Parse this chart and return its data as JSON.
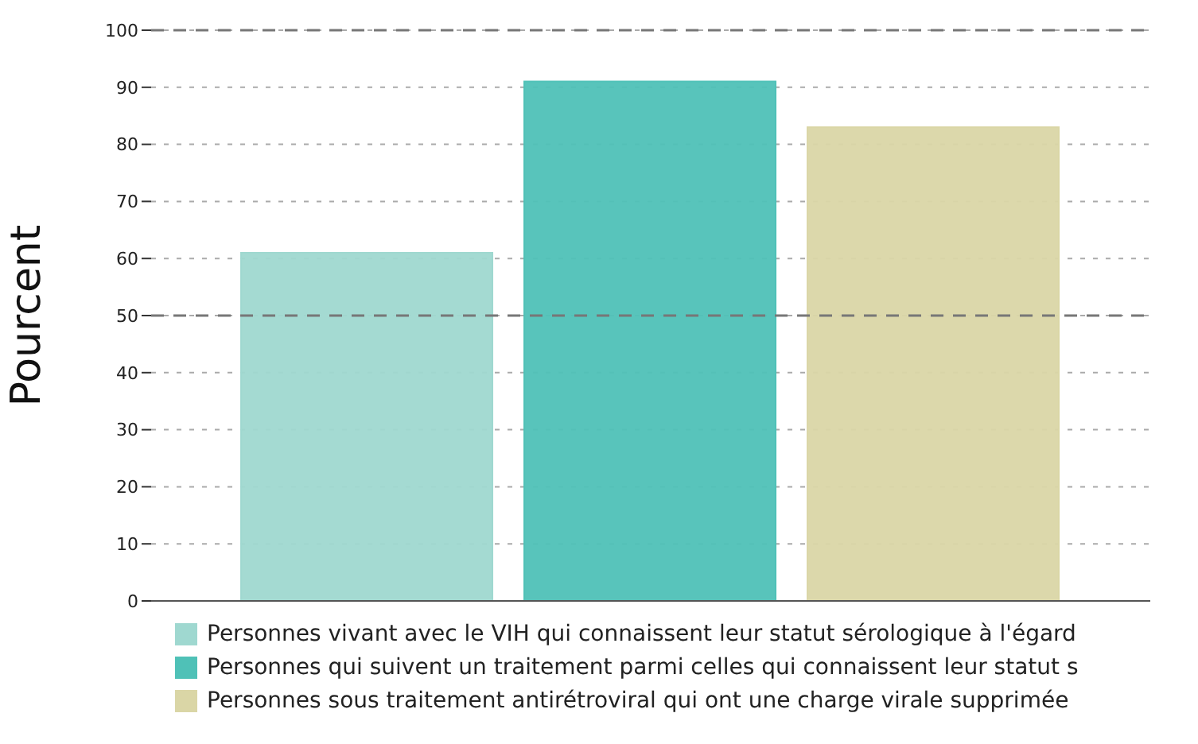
{
  "chart_data": {
    "type": "bar",
    "ylabel": "Pourcent",
    "categories": [
      null
    ],
    "series": [
      {
        "name": "Personnes vivant avec le VIH qui connaissent leur statut sérologique à l'égard",
        "color": "#9fd8d0",
        "values": [
          61
        ]
      },
      {
        "name": "Personnes qui suivent un traitement parmi celles qui connaissent leur statut s",
        "color": "#4fc1b7",
        "values": [
          91
        ]
      },
      {
        "name": "Personnes sous traitement antirétroviral qui ont une charge virale supprimée",
        "color": "#dad6a6",
        "values": [
          83
        ]
      }
    ],
    "ylim": [
      0,
      100
    ],
    "yticks": [
      0,
      10,
      20,
      30,
      40,
      50,
      60,
      70,
      80,
      90,
      100
    ],
    "grid": "y",
    "legend": "bottom",
    "ref_lines": [
      {
        "axis": "y",
        "value": 50,
        "color": "#777777",
        "line_style": "dashed"
      },
      {
        "axis": "y",
        "value": 100,
        "color": "#777777",
        "line_style": "dashed"
      }
    ]
  }
}
